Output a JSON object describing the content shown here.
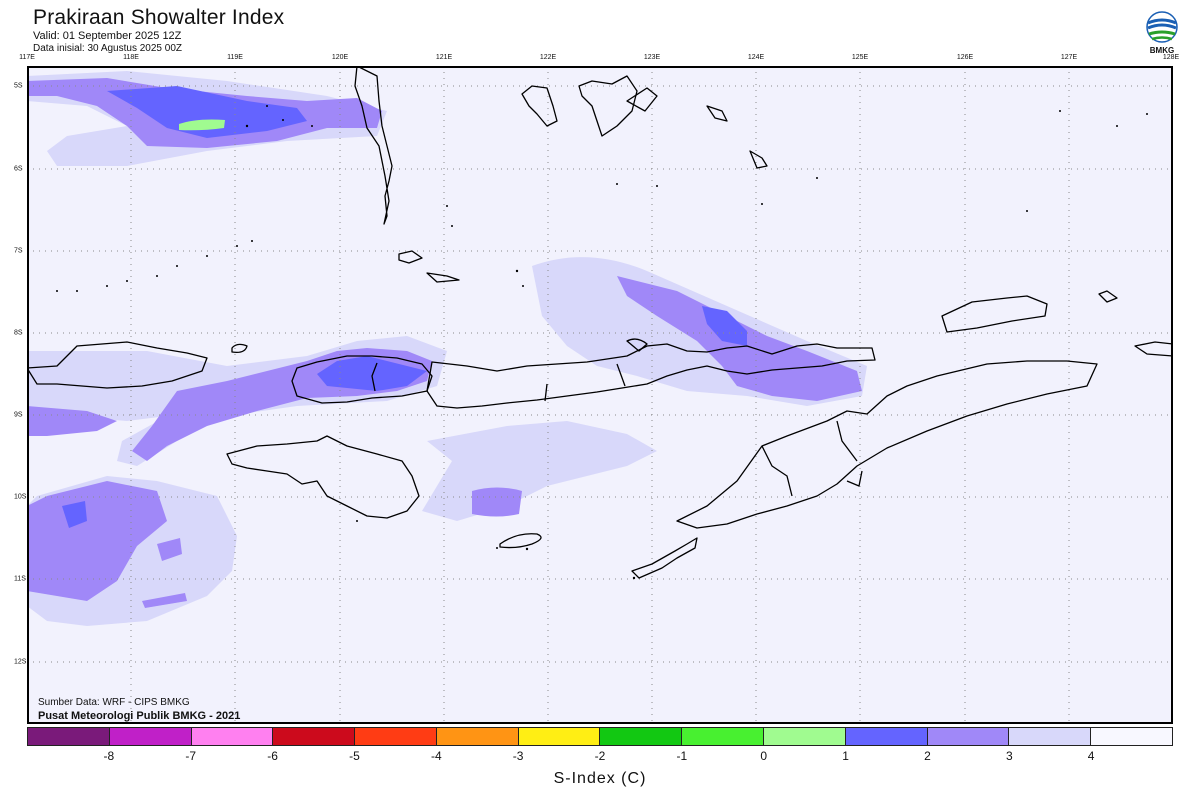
{
  "header": {
    "title": "Prakiraan Showalter Index",
    "valid": "Valid: 01 September 2025 12Z",
    "initial": "Data inisial: 30 Agustus 2025 00Z"
  },
  "logo": {
    "label": "BMKG",
    "icon": "bmkg-logo-icon"
  },
  "map": {
    "lon_labels": [
      "117E",
      "118E",
      "119E",
      "120E",
      "121E",
      "122E",
      "123E",
      "124E",
      "125E",
      "126E",
      "127E",
      "128E"
    ],
    "lat_labels": [
      "5S",
      "6S",
      "7S",
      "8S",
      "9S",
      "10S",
      "11S",
      "12S"
    ],
    "background_color": "#f2f2fd"
  },
  "credits": {
    "source": "Sumber Data: WRF - CIPS BMKG",
    "center": "Pusat Meteorologi Publik BMKG - 2021"
  },
  "colorbar": {
    "colors": [
      "#7a1a7a",
      "#c020c8",
      "#ff80f0",
      "#cc0a1c",
      "#ff3c14",
      "#ff9414",
      "#ffee14",
      "#12c812",
      "#48f030",
      "#a0fb90",
      "#6464ff",
      "#a088f8",
      "#d8d8fa",
      "#f8f8ff"
    ],
    "tick_labels": [
      "-8",
      "-7",
      "-6",
      "-5",
      "-4",
      "-3",
      "-2",
      "-1",
      "0",
      "1",
      "2",
      "3",
      "4"
    ],
    "title": "S-Index (C)"
  }
}
